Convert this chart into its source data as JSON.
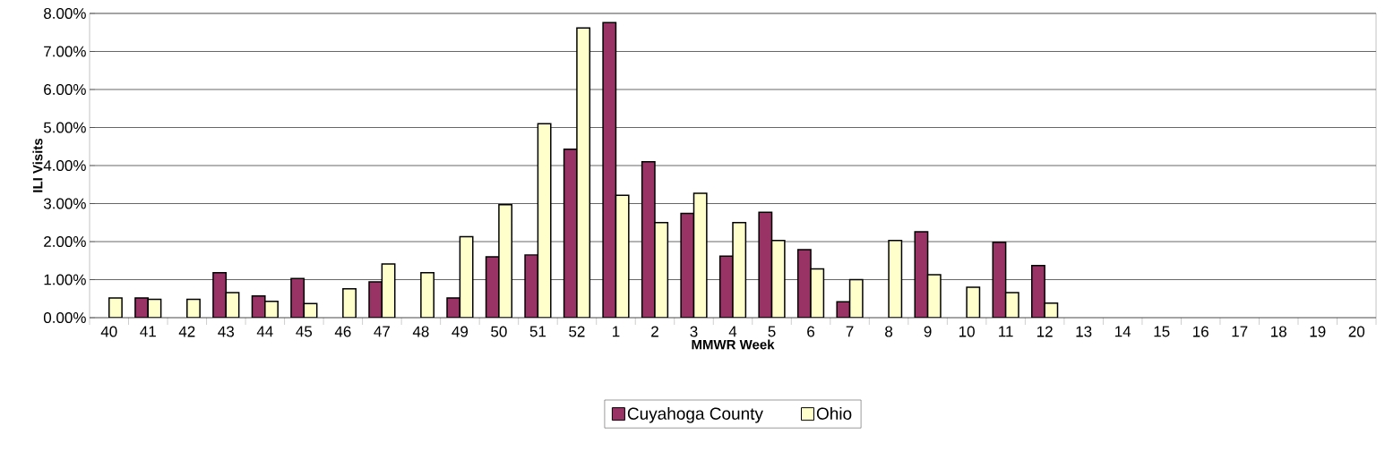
{
  "chart_data": {
    "type": "bar",
    "xlabel": "MMWR Week",
    "ylabel": "ILI Visits",
    "categories": [
      "40",
      "41",
      "42",
      "43",
      "44",
      "45",
      "46",
      "47",
      "48",
      "49",
      "50",
      "51",
      "52",
      "1",
      "2",
      "3",
      "4",
      "5",
      "6",
      "7",
      "8",
      "9",
      "10",
      "11",
      "12",
      "13",
      "14",
      "15",
      "16",
      "17",
      "18",
      "19",
      "20"
    ],
    "series": [
      {
        "name": "Cuyahoga County",
        "color": "#993366",
        "values": [
          null,
          0.52,
          null,
          1.18,
          0.57,
          1.03,
          null,
          0.94,
          null,
          0.52,
          1.6,
          1.65,
          4.43,
          7.76,
          4.1,
          2.74,
          1.62,
          2.77,
          1.79,
          0.42,
          null,
          2.26,
          null,
          1.98,
          1.37,
          null,
          null,
          null,
          null,
          null,
          null,
          null,
          null
        ]
      },
      {
        "name": "Ohio",
        "color": "#ffffcc",
        "values": [
          0.52,
          0.48,
          0.48,
          0.66,
          0.43,
          0.37,
          0.76,
          1.41,
          1.18,
          2.13,
          2.97,
          5.1,
          7.62,
          3.22,
          2.5,
          3.27,
          2.5,
          2.03,
          1.28,
          1.0,
          2.03,
          1.13,
          0.8,
          0.66,
          0.38,
          null,
          null,
          null,
          null,
          null,
          null,
          null,
          null
        ]
      }
    ],
    "ylim": [
      0,
      8
    ],
    "yticks": [
      {
        "value": 0,
        "label": "0.00%"
      },
      {
        "value": 1,
        "label": "1.00%"
      },
      {
        "value": 2,
        "label": "2.00%"
      },
      {
        "value": 3,
        "label": "3.00%"
      },
      {
        "value": 4,
        "label": "4.00%"
      },
      {
        "value": 5,
        "label": "5.00%"
      },
      {
        "value": 6,
        "label": "6.00%"
      },
      {
        "value": 7,
        "label": "7.00%"
      },
      {
        "value": 8,
        "label": "8.00%"
      }
    ],
    "grid": "y",
    "legend": "bottom"
  }
}
